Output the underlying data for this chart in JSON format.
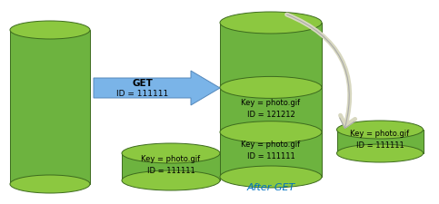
{
  "title": "After GET",
  "title_color": "#0070c0",
  "cylinder_color_face": "#6db33f",
  "cylinder_color_dark": "#3d6b1e",
  "cylinder_color_top": "#8cc840",
  "cylinder_color_mid_top": "#7ab535",
  "arrow_fill": "#7ab4e8",
  "arrow_edge": "#5588bb",
  "curved_arrow_color": "#d8d8c0",
  "curved_arrow_edge": "#aaaaaa",
  "text_color": "#000000",
  "label_left_top": [
    "Key = photo.gif",
    "ID = 111111"
  ],
  "label_center_mid": [
    "Key = photo.gif",
    "ID = 121212"
  ],
  "label_center_bot": [
    "Key = photo.gif",
    "ID = 111111"
  ],
  "label_right": [
    "Key = photo.gif",
    "ID = 111111"
  ],
  "get_label": [
    "GET",
    "ID = 111111"
  ]
}
